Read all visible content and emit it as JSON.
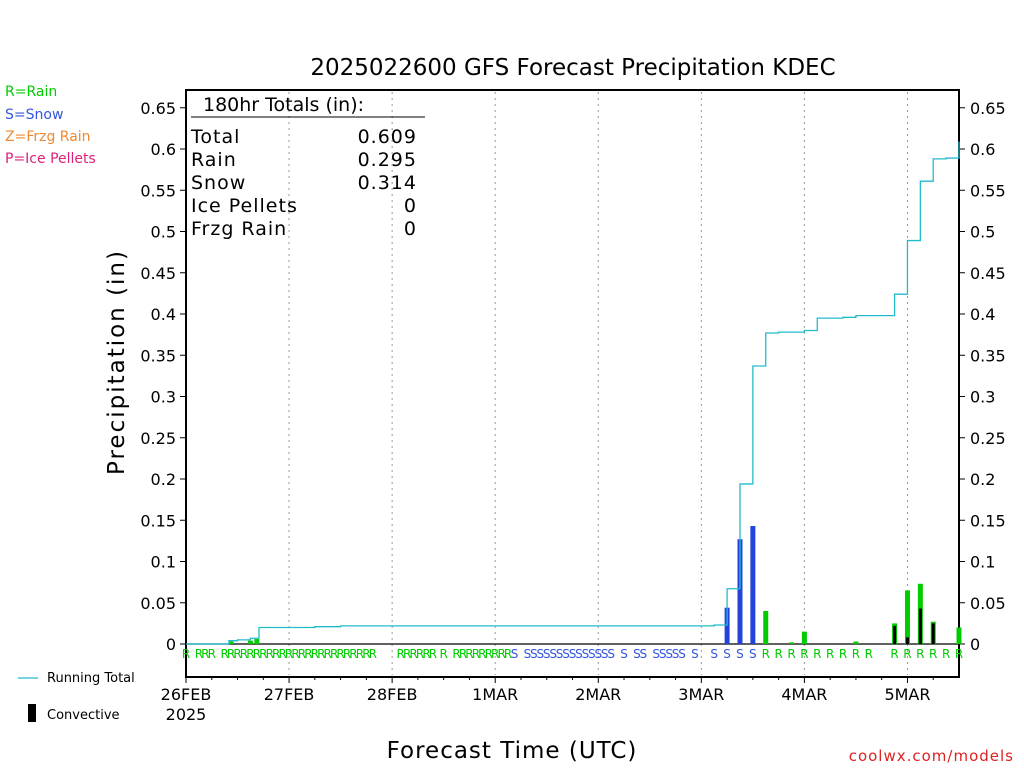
{
  "chart_data": {
    "type": "bar",
    "title": "2025022600 GFS Forecast Precipitation KDEC",
    "ylabel": "Precipitation (in)",
    "xlabel": "Forecast Time (UTC)",
    "ylim": [
      0,
      0.67
    ],
    "y_ticks": [
      "0",
      "0.05",
      "0.1",
      "0.15",
      "0.2",
      "0.25",
      "0.3",
      "0.35",
      "0.4",
      "0.45",
      "0.5",
      "0.55",
      "0.6",
      "0.65"
    ],
    "x_ticks": [
      {
        "hour": 0,
        "label": "26FEB",
        "sublabel": "2025"
      },
      {
        "hour": 24,
        "label": "27FEB"
      },
      {
        "hour": 48,
        "label": "28FEB"
      },
      {
        "hour": 72,
        "label": "1MAR"
      },
      {
        "hour": 96,
        "label": "2MAR"
      },
      {
        "hour": 120,
        "label": "3MAR"
      },
      {
        "hour": 144,
        "label": "4MAR"
      },
      {
        "hour": 168,
        "label": "5MAR"
      }
    ],
    "x_range_hours": [
      0,
      180
    ],
    "grid": "vertical dotted at day boundaries",
    "legend": {
      "types": [
        {
          "text": "R=Rain",
          "color": "#00cc00"
        },
        {
          "text": "S=Snow",
          "color": "#3355dd"
        },
        {
          "text": "Z=Frzg Rain",
          "color": "#ee8833"
        },
        {
          "text": "P=Ice Pellets",
          "color": "#dd2277"
        }
      ],
      "running_total": "Running Total",
      "convective": "Convective"
    },
    "totals_box": {
      "heading": "180hr Totals (in):",
      "rows": [
        {
          "label": "Total",
          "value": "0.609"
        },
        {
          "label": "Rain",
          "value": "0.295"
        },
        {
          "label": "Snow",
          "value": "0.314"
        },
        {
          "label": "Ice Pellets",
          "value": "0"
        },
        {
          "label": "Frzg Rain",
          "value": "0"
        }
      ]
    },
    "series": [
      {
        "name": "Running Total",
        "color": "#22bbcc",
        "points": [
          [
            0,
            0
          ],
          [
            9,
            0
          ],
          [
            10,
            0.004
          ],
          [
            12,
            0.005
          ],
          [
            15,
            0.007
          ],
          [
            17,
            0.02
          ],
          [
            30,
            0.021
          ],
          [
            36,
            0.022
          ],
          [
            48,
            0.022
          ],
          [
            84,
            0.022
          ],
          [
            120,
            0.022
          ],
          [
            123,
            0.023
          ],
          [
            126,
            0.067
          ],
          [
            129,
            0.194
          ],
          [
            132,
            0.337
          ],
          [
            135,
            0.377
          ],
          [
            138,
            0.378
          ],
          [
            141,
            0.378
          ],
          [
            144,
            0.38
          ],
          [
            147,
            0.395
          ],
          [
            150,
            0.395
          ],
          [
            153,
            0.396
          ],
          [
            156,
            0.398
          ],
          [
            159,
            0.398
          ],
          [
            162,
            0.398
          ],
          [
            165,
            0.424
          ],
          [
            168,
            0.489
          ],
          [
            171,
            0.561
          ],
          [
            174,
            0.588
          ],
          [
            177,
            0.589
          ],
          [
            180,
            0.609
          ]
        ]
      },
      {
        "name": "Precipitation",
        "bars": [
          {
            "hour": 10.5,
            "value": 0.003,
            "color": "#00cc00"
          },
          {
            "hour": 15,
            "value": 0.004,
            "color": "#00cc00"
          },
          {
            "hour": 16.5,
            "value": 0.006,
            "color": "#00cc00"
          },
          {
            "hour": 126,
            "value": 0.044,
            "color": "#2244dd"
          },
          {
            "hour": 129,
            "value": 0.127,
            "color": "#2244dd"
          },
          {
            "hour": 132,
            "value": 0.143,
            "color": "#2244dd"
          },
          {
            "hour": 135,
            "value": 0.04,
            "color": "#00cc00"
          },
          {
            "hour": 141,
            "value": 0.002,
            "color": "#00cc00"
          },
          {
            "hour": 144,
            "value": 0.015,
            "color": "#00cc00"
          },
          {
            "hour": 156,
            "value": 0.003,
            "color": "#00cc00"
          },
          {
            "hour": 165,
            "value": 0.025,
            "color": "#00cc00"
          },
          {
            "hour": 168,
            "value": 0.065,
            "color": "#00cc00"
          },
          {
            "hour": 171,
            "value": 0.073,
            "color": "#00cc00"
          },
          {
            "hour": 174,
            "value": 0.027,
            "color": "#00cc00"
          },
          {
            "hour": 180,
            "value": 0.02,
            "color": "#00cc00"
          }
        ]
      },
      {
        "name": "Convective",
        "bars": [
          {
            "hour": 165,
            "value": 0.022
          },
          {
            "hour": 168,
            "value": 0.008
          },
          {
            "hour": 171,
            "value": 0.043
          },
          {
            "hour": 174,
            "value": 0.025
          }
        ]
      }
    ],
    "type_markers": [
      {
        "hour": 0,
        "t": "R"
      },
      {
        "hour": 3,
        "t": "R"
      },
      {
        "hour": 4.5,
        "t": "R"
      },
      {
        "hour": 6,
        "t": "R"
      },
      {
        "hour": 9,
        "t": "R"
      },
      {
        "hour": 10.5,
        "t": "R"
      },
      {
        "hour": 12,
        "t": "R"
      },
      {
        "hour": 13.5,
        "t": "R"
      },
      {
        "hour": 15,
        "t": "R"
      },
      {
        "hour": 16.5,
        "t": "R"
      },
      {
        "hour": 18,
        "t": "R"
      },
      {
        "hour": 19.5,
        "t": "R"
      },
      {
        "hour": 21,
        "t": "R"
      },
      {
        "hour": 22.5,
        "t": "R"
      },
      {
        "hour": 24,
        "t": "R"
      },
      {
        "hour": 25.5,
        "t": "R"
      },
      {
        "hour": 27,
        "t": "R"
      },
      {
        "hour": 28.5,
        "t": "R"
      },
      {
        "hour": 30,
        "t": "R"
      },
      {
        "hour": 31.5,
        "t": "R"
      },
      {
        "hour": 33,
        "t": "R"
      },
      {
        "hour": 34.5,
        "t": "R"
      },
      {
        "hour": 36,
        "t": "R"
      },
      {
        "hour": 37.5,
        "t": "R"
      },
      {
        "hour": 39,
        "t": "R"
      },
      {
        "hour": 40.5,
        "t": "R"
      },
      {
        "hour": 42,
        "t": "R"
      },
      {
        "hour": 43.5,
        "t": "R"
      },
      {
        "hour": 50,
        "t": "R"
      },
      {
        "hour": 51.5,
        "t": "R"
      },
      {
        "hour": 53,
        "t": "R"
      },
      {
        "hour": 54.5,
        "t": "R"
      },
      {
        "hour": 56,
        "t": "R"
      },
      {
        "hour": 57.5,
        "t": "R"
      },
      {
        "hour": 60,
        "t": "R"
      },
      {
        "hour": 63,
        "t": "R"
      },
      {
        "hour": 64.5,
        "t": "R"
      },
      {
        "hour": 66,
        "t": "R"
      },
      {
        "hour": 67.5,
        "t": "R"
      },
      {
        "hour": 69,
        "t": "R"
      },
      {
        "hour": 70.5,
        "t": "R"
      },
      {
        "hour": 72,
        "t": "R"
      },
      {
        "hour": 73.5,
        "t": "R"
      },
      {
        "hour": 75,
        "t": "R"
      },
      {
        "hour": 76.5,
        "t": "S"
      },
      {
        "hour": 79.5,
        "t": "S"
      },
      {
        "hour": 81,
        "t": "S"
      },
      {
        "hour": 82.5,
        "t": "S"
      },
      {
        "hour": 84,
        "t": "S"
      },
      {
        "hour": 85.5,
        "t": "S"
      },
      {
        "hour": 87,
        "t": "S"
      },
      {
        "hour": 88.5,
        "t": "S"
      },
      {
        "hour": 90,
        "t": "S"
      },
      {
        "hour": 91.5,
        "t": "S"
      },
      {
        "hour": 93,
        "t": "S"
      },
      {
        "hour": 94.5,
        "t": "S"
      },
      {
        "hour": 96,
        "t": "S"
      },
      {
        "hour": 97.5,
        "t": "S"
      },
      {
        "hour": 99,
        "t": "S"
      },
      {
        "hour": 102,
        "t": "S"
      },
      {
        "hour": 105,
        "t": "S"
      },
      {
        "hour": 106.5,
        "t": "S"
      },
      {
        "hour": 109.5,
        "t": "S"
      },
      {
        "hour": 111,
        "t": "S"
      },
      {
        "hour": 112.5,
        "t": "S"
      },
      {
        "hour": 114,
        "t": "S"
      },
      {
        "hour": 115.5,
        "t": "S"
      },
      {
        "hour": 118.5,
        "t": "S"
      },
      {
        "hour": 123,
        "t": "S"
      },
      {
        "hour": 126,
        "t": "S"
      },
      {
        "hour": 129,
        "t": "S"
      },
      {
        "hour": 132,
        "t": "S"
      },
      {
        "hour": 135,
        "t": "R"
      },
      {
        "hour": 138,
        "t": "R"
      },
      {
        "hour": 141,
        "t": "R"
      },
      {
        "hour": 144,
        "t": "R"
      },
      {
        "hour": 147,
        "t": "R"
      },
      {
        "hour": 150,
        "t": "R"
      },
      {
        "hour": 153,
        "t": "R"
      },
      {
        "hour": 156,
        "t": "R"
      },
      {
        "hour": 159,
        "t": "R"
      },
      {
        "hour": 165,
        "t": "R"
      },
      {
        "hour": 168,
        "t": "R"
      },
      {
        "hour": 171,
        "t": "R"
      },
      {
        "hour": 174,
        "t": "R"
      },
      {
        "hour": 177,
        "t": "R"
      },
      {
        "hour": 180,
        "t": "R"
      }
    ],
    "marker_colors": {
      "R": "#00cc00",
      "S": "#3355dd",
      "Z": "#ee8833",
      "P": "#dd2277"
    }
  },
  "footer": {
    "source": "coolwx.com/models",
    "source_color": "#dd2222"
  }
}
